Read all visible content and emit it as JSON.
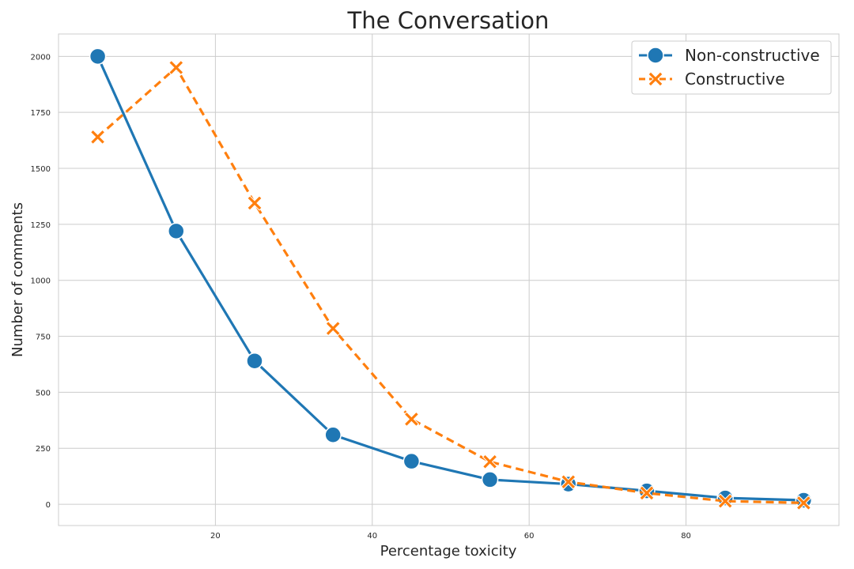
{
  "chart_data": {
    "type": "line",
    "title": "The Conversation",
    "xlabel": "Percentage toxicity",
    "ylabel": "Number of comments",
    "xlim": [
      0,
      99.5
    ],
    "ylim": [
      -95,
      2100
    ],
    "xticks": [
      20,
      40,
      60,
      80
    ],
    "yticks": [
      0,
      250,
      500,
      750,
      1000,
      1250,
      1500,
      1750,
      2000
    ],
    "grid": true,
    "legend": "top-right",
    "x": [
      5,
      15,
      25,
      35,
      45,
      55,
      65,
      75,
      85,
      95
    ],
    "series": [
      {
        "name": "Non-constructive",
        "color": "#1f77b4",
        "marker": "circle",
        "linestyle": "solid",
        "values": [
          2000,
          1220,
          640,
          310,
          192,
          110,
          90,
          60,
          28,
          18
        ]
      },
      {
        "name": "Constructive",
        "color": "#ff7f0e",
        "marker": "x",
        "linestyle": "dashed",
        "values": [
          1640,
          1950,
          1345,
          785,
          380,
          190,
          100,
          50,
          14,
          6
        ]
      }
    ]
  }
}
